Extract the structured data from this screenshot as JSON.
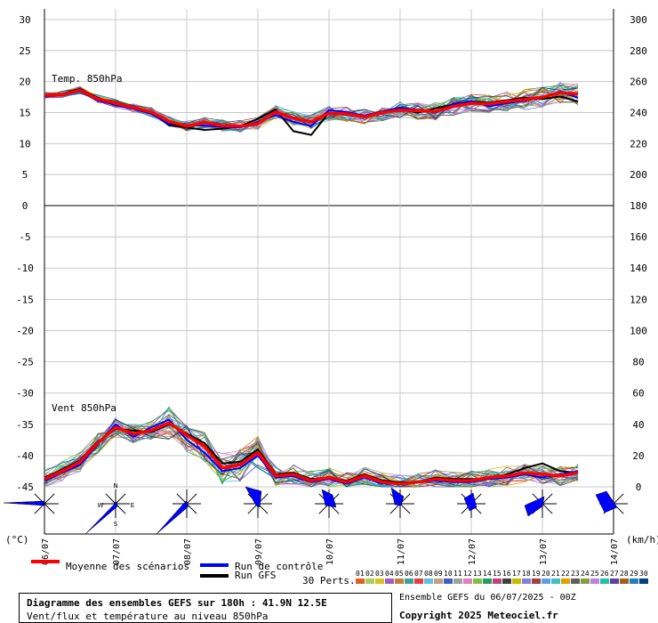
{
  "chart_data": {
    "type": "line",
    "title": "Diagramme des ensembles GEFS sur 180h : 41.9N 12.5E",
    "subtitle": "Vent/flux et température au niveau 850hPa",
    "run_info": "Ensemble GEFS du 06/07/2025 - 00Z",
    "copyright": "Copyright 2025 Meteociel.fr",
    "x_dates": [
      "06/07",
      "07/07",
      "08/07",
      "09/07",
      "10/07",
      "11/07",
      "12/07",
      "13/07",
      "14/07"
    ],
    "x_range_hours": [
      0,
      192
    ],
    "temp_panel": {
      "label": "Temp. 850hPa",
      "unit": "(°C)",
      "left_ticks": [
        30,
        25,
        20,
        15,
        10,
        5,
        0
      ],
      "right_ticks": [
        300,
        280,
        260,
        240,
        220,
        200,
        180
      ],
      "ylim": [
        0,
        30
      ],
      "hours": [
        0,
        6,
        12,
        18,
        24,
        30,
        36,
        42,
        48,
        54,
        60,
        66,
        72,
        78,
        84,
        90,
        96,
        102,
        108,
        114,
        120,
        126,
        132,
        138,
        144,
        150,
        156,
        162,
        168,
        174,
        180
      ],
      "mean": [
        17.8,
        17.9,
        18.6,
        17.2,
        16.5,
        15.8,
        15.1,
        13.6,
        12.8,
        13.4,
        12.9,
        12.8,
        13.2,
        15.1,
        14.1,
        13.5,
        14.9,
        14.8,
        14.3,
        15.0,
        15.4,
        15.3,
        15.2,
        16.0,
        16.5,
        16.4,
        16.8,
        17.1,
        17.5,
        18.2,
        18.0
      ],
      "control": [
        17.6,
        17.8,
        18.4,
        17.0,
        16.2,
        15.6,
        14.8,
        13.2,
        13.0,
        12.9,
        12.7,
        12.6,
        13.5,
        14.6,
        13.5,
        12.8,
        15.4,
        15.1,
        14.5,
        15.2,
        15.8,
        15.4,
        15.0,
        16.4,
        16.9,
        16.0,
        16.5,
        16.9,
        17.4,
        18.4,
        17.4
      ],
      "gfs": [
        17.9,
        18.0,
        18.8,
        17.4,
        16.4,
        15.7,
        15.0,
        13.0,
        12.6,
        12.2,
        12.4,
        12.8,
        14.0,
        15.5,
        12.0,
        11.4,
        15.0,
        14.6,
        14.3,
        15.1,
        15.5,
        15.0,
        15.7,
        16.3,
        16.8,
        16.6,
        17.0,
        17.4,
        17.2,
        17.6,
        16.8
      ]
    },
    "wind_panel": {
      "label": "Vent 850hPa",
      "unit": "(km/h)",
      "left_ticks": [
        0,
        -5,
        -10,
        -15,
        -20,
        -25,
        -30,
        -35,
        -40,
        -45
      ],
      "right_ticks": [
        180,
        160,
        140,
        120,
        100,
        80,
        60,
        40,
        20,
        0
      ],
      "ylim_kmh": [
        0,
        180
      ],
      "hours": [
        0,
        6,
        12,
        18,
        24,
        30,
        36,
        42,
        48,
        54,
        60,
        66,
        72,
        78,
        84,
        90,
        96,
        102,
        108,
        114,
        120,
        126,
        132,
        138,
        144,
        150,
        156,
        162,
        168,
        174,
        180
      ],
      "mean": [
        5,
        10,
        16,
        28,
        38,
        34,
        36,
        41,
        33,
        26,
        12,
        14,
        22,
        7,
        8,
        4,
        6,
        3,
        7,
        3,
        2,
        3,
        5,
        4,
        4,
        6,
        7,
        9,
        8,
        7,
        9
      ],
      "control": [
        4,
        9,
        14,
        27,
        40,
        32,
        38,
        43,
        30,
        22,
        10,
        12,
        20,
        6,
        7,
        3,
        5,
        2,
        6,
        2,
        2,
        3,
        4,
        3,
        3,
        5,
        6,
        8,
        6,
        8,
        10
      ],
      "gfs": [
        6,
        11,
        17,
        29,
        37,
        36,
        35,
        40,
        34,
        28,
        15,
        16,
        24,
        8,
        9,
        5,
        6,
        4,
        8,
        4,
        3,
        3,
        6,
        5,
        5,
        5,
        8,
        12,
        15,
        10,
        9
      ]
    },
    "legend": {
      "mean": "Moyenne des scénarios",
      "control": "Run de contrôle",
      "gfs": "Run GFS",
      "perts": "30 Perts."
    },
    "compass": {
      "n": "N",
      "s": "S",
      "e": "E",
      "w": "W"
    },
    "pert_colors": [
      "#e06020",
      "#a0d060",
      "#e0c020",
      "#a060c0",
      "#c08040",
      "#40a0a0",
      "#e04040",
      "#60c0e0",
      "#c0a080",
      "#4060c0",
      "#a0a0a0",
      "#e080c0",
      "#80c040",
      "#20a060",
      "#c04080",
      "#404040",
      "#c0c000",
      "#8080e0",
      "#a04040",
      "#60a0e0",
      "#40c0c0",
      "#e0a000",
      "#606060",
      "#80a040",
      "#c080e0",
      "#20c0a0",
      "#6040a0",
      "#a06020",
      "#2080c0",
      "#004080"
    ],
    "pert_labels": [
      "01",
      "02",
      "03",
      "04",
      "05",
      "06",
      "07",
      "08",
      "09",
      "10",
      "11",
      "12",
      "13",
      "14",
      "15",
      "16",
      "17",
      "18",
      "19",
      "20",
      "21",
      "22",
      "23",
      "24",
      "25",
      "26",
      "27",
      "28",
      "29",
      "30"
    ],
    "colors": {
      "mean": "#ff0000",
      "control": "#0000ff",
      "gfs": "#000000",
      "wind_rose": "#0000ff"
    },
    "wind_roses_every_hours": 24
  }
}
